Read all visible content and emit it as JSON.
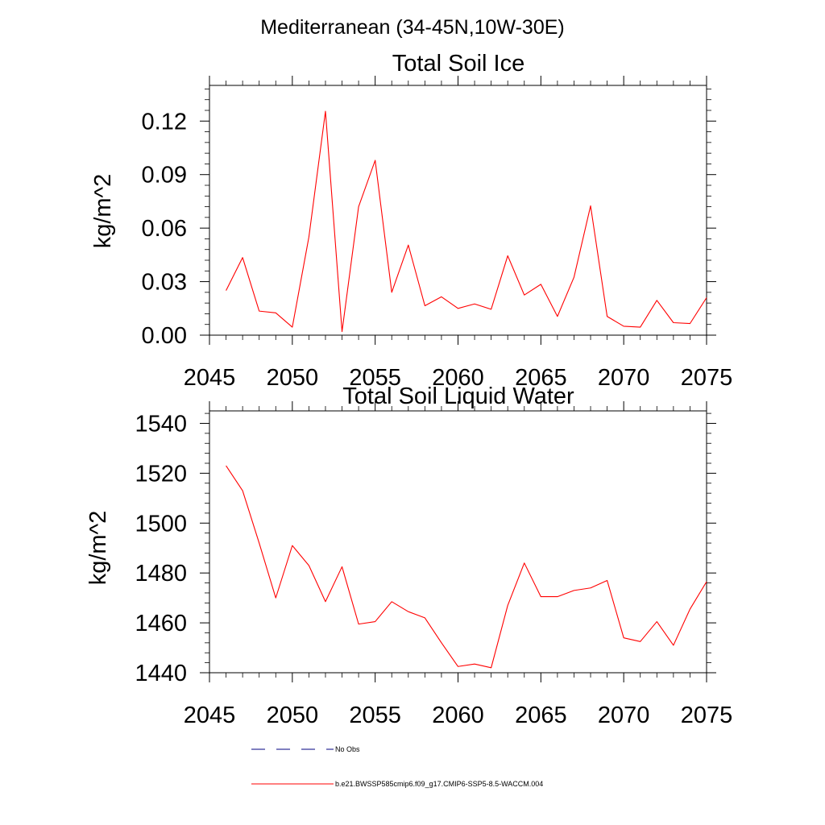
{
  "figure": {
    "suptitle": "Mediterranean (34-45N,10W-30E)"
  },
  "colors": {
    "series": "#ff0000",
    "obs": "#000080",
    "axes": "#000000"
  },
  "chart_data": [
    {
      "type": "line",
      "title": "Total Soil Ice",
      "xlabel": "",
      "ylabel": "kg/m^2",
      "xlim": [
        2045,
        2075
      ],
      "ylim": [
        0,
        0.14
      ],
      "xticks": [
        2045,
        2050,
        2055,
        2060,
        2065,
        2070,
        2075
      ],
      "xtick_labels": [
        "2045",
        "2050",
        "2055",
        "2060",
        "2065",
        "2070",
        "2075"
      ],
      "yticks": [
        0,
        0.03,
        0.06,
        0.09,
        0.12
      ],
      "ytick_labels": [
        "0.00",
        "0.03",
        "0.06",
        "0.09",
        "0.12"
      ],
      "x": [
        2046,
        2047,
        2048,
        2049,
        2050,
        2051,
        2052,
        2053,
        2054,
        2055,
        2056,
        2057,
        2058,
        2059,
        2060,
        2061,
        2062,
        2063,
        2064,
        2065,
        2066,
        2067,
        2068,
        2069,
        2070,
        2071,
        2072,
        2073,
        2074,
        2075
      ],
      "series": [
        {
          "name": "b.e21.BWSSP585cmip6.f09_g17.CMIP6-SSP5-8.5-WACCM.004",
          "values": [
            0.025,
            0.0435,
            0.0135,
            0.0125,
            0.0045,
            0.055,
            0.1255,
            0.002,
            0.072,
            0.098,
            0.024,
            0.0505,
            0.0165,
            0.0215,
            0.015,
            0.0175,
            0.0145,
            0.0445,
            0.0225,
            0.0285,
            0.0105,
            0.0325,
            0.0725,
            0.0105,
            0.005,
            0.0045,
            0.0195,
            0.007,
            0.0065,
            0.021
          ]
        }
      ]
    },
    {
      "type": "line",
      "title": "Total Soil Liquid Water",
      "xlabel": "",
      "ylabel": "kg/m^2",
      "xlim": [
        2045,
        2075
      ],
      "ylim": [
        1440,
        1545
      ],
      "xticks": [
        2045,
        2050,
        2055,
        2060,
        2065,
        2070,
        2075
      ],
      "xtick_labels": [
        "2045",
        "2050",
        "2055",
        "2060",
        "2065",
        "2070",
        "2075"
      ],
      "yticks": [
        1440,
        1460,
        1480,
        1500,
        1520,
        1540
      ],
      "ytick_labels": [
        "1440",
        "1460",
        "1480",
        "1500",
        "1520",
        "1540"
      ],
      "x": [
        2046,
        2047,
        2048,
        2049,
        2050,
        2051,
        2052,
        2053,
        2054,
        2055,
        2056,
        2057,
        2058,
        2059,
        2060,
        2061,
        2062,
        2063,
        2064,
        2065,
        2066,
        2067,
        2068,
        2069,
        2070,
        2071,
        2072,
        2073,
        2074,
        2075
      ],
      "series": [
        {
          "name": "b.e21.BWSSP585cmip6.f09_g17.CMIP6-SSP5-8.5-WACCM.004",
          "values": [
            1523,
            1513,
            1492,
            1470,
            1491,
            1483,
            1468.5,
            1482.5,
            1459.5,
            1460.5,
            1468.5,
            1464.5,
            1462,
            1452,
            1442.5,
            1443.5,
            1442,
            1467,
            1484,
            1470.5,
            1470.5,
            1473,
            1474,
            1477,
            1454,
            1452.5,
            1460.5,
            1451,
            1465.5,
            1476.5
          ]
        }
      ]
    }
  ],
  "legend": {
    "items": [
      {
        "label": "No Obs",
        "style": "dashed"
      },
      {
        "label": "b.e21.BWSSP585cmip6.f09_g17.CMIP6-SSP5-8.5-WACCM.004",
        "style": "solid"
      }
    ]
  }
}
